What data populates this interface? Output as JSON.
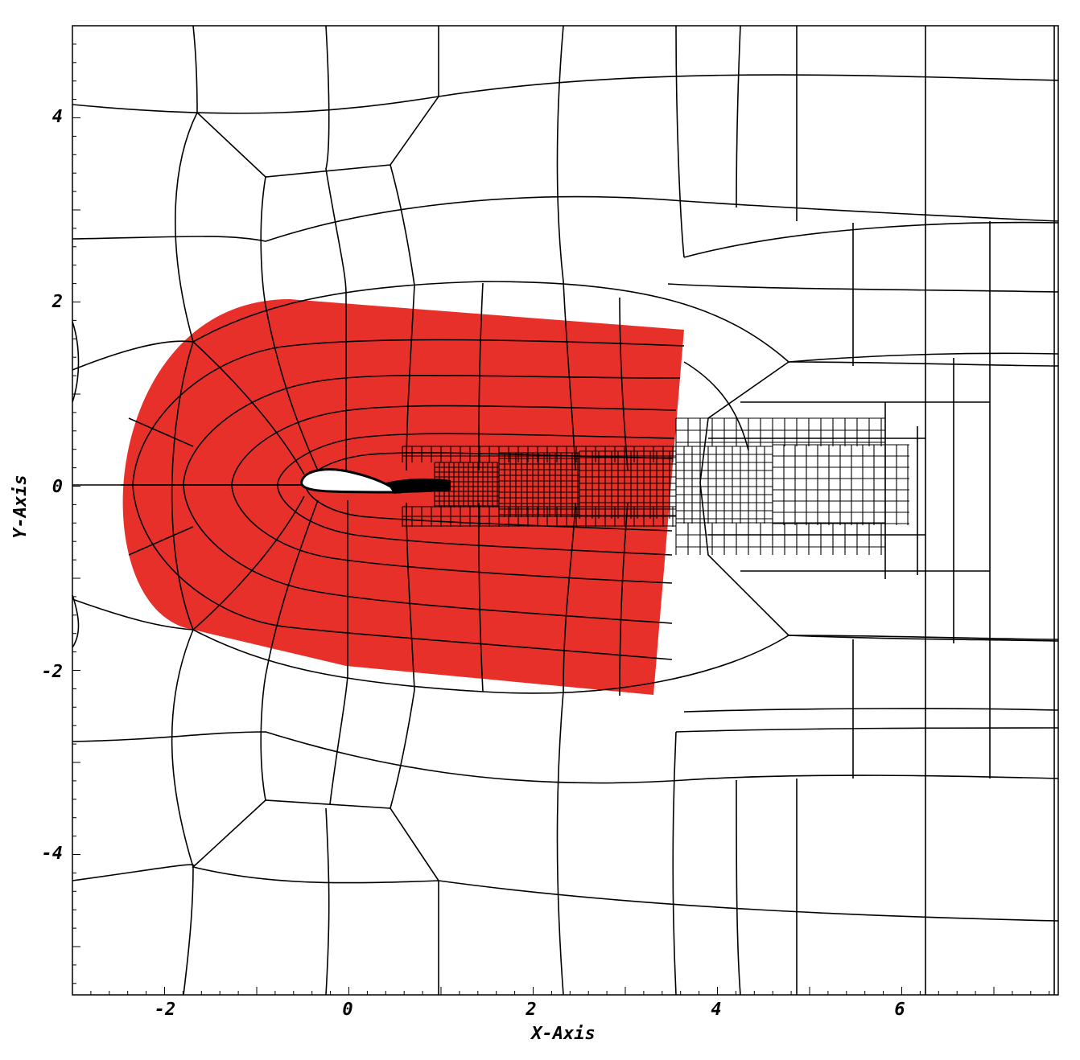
{
  "figure": {
    "x_axis_label": "X-Axis",
    "y_axis_label": "Y-Axis",
    "x_ticks": [
      "-2",
      "0",
      "2",
      "4",
      "6"
    ],
    "y_ticks": [
      "4",
      "2",
      "0",
      "-2",
      "-4"
    ],
    "x_range": [
      -3.0,
      7.7
    ],
    "y_range": [
      -5.6,
      5.0
    ],
    "refinement_zone_color": "#e8302a",
    "background_color": "#ffffff",
    "mesh_color": "#000000"
  }
}
